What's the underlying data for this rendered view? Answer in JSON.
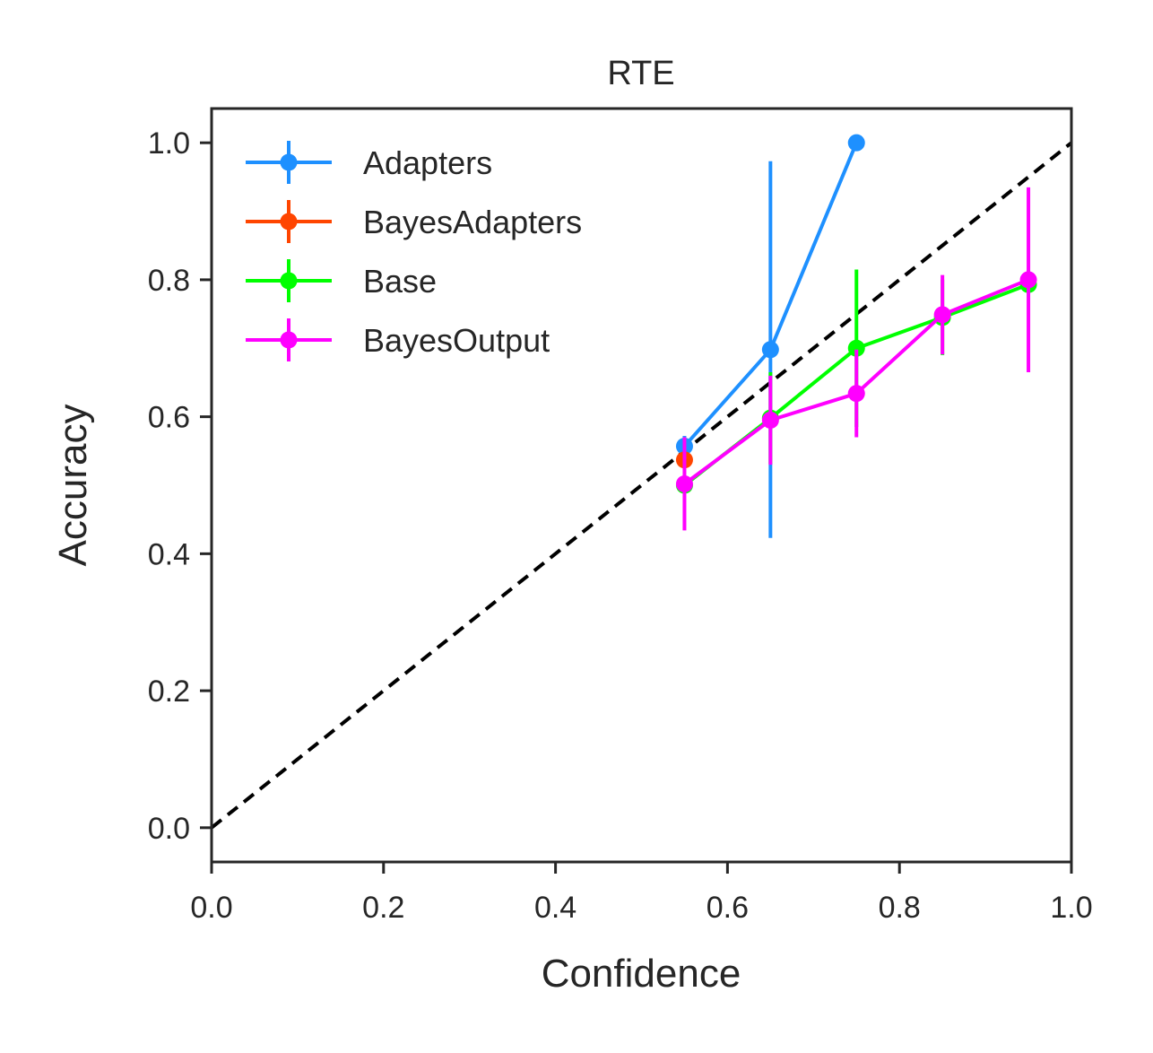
{
  "chart_data": {
    "type": "line",
    "title": "RTE",
    "xlabel": "Confidence",
    "ylabel": "Accuracy",
    "xlim": [
      0.0,
      1.0
    ],
    "ylim": [
      -0.05,
      1.05
    ],
    "xticks": [
      "0.0",
      "0.2",
      "0.4",
      "0.6",
      "0.8",
      "1.0"
    ],
    "yticks": [
      "0.0",
      "0.2",
      "0.4",
      "0.6",
      "0.8",
      "1.0"
    ],
    "grid": false,
    "legend_position": "top-left",
    "reference_line": {
      "style": "dashed",
      "color": "#000000",
      "from": [
        0,
        0
      ],
      "to": [
        1,
        1
      ]
    },
    "series": [
      {
        "name": "Adapters",
        "color": "#1e90ff",
        "x": [
          0.55,
          0.65,
          0.75
        ],
        "y": [
          0.557,
          0.698,
          1.0
        ],
        "err": [
          0.015,
          0.275,
          0.0
        ]
      },
      {
        "name": "BayesAdapters",
        "color": "#ff4500",
        "x": [
          0.55
        ],
        "y": [
          0.537
        ],
        "err": [
          0.0
        ]
      },
      {
        "name": "Base",
        "color": "#00ff00",
        "x": [
          0.55,
          0.65,
          0.75,
          0.85,
          0.95
        ],
        "y": [
          0.5,
          0.598,
          0.7,
          0.745,
          0.793
        ],
        "err": [
          0.0,
          0.067,
          0.115,
          0.055,
          0.0
        ]
      },
      {
        "name": "BayesOutput",
        "color": "#ff00ff",
        "x": [
          0.55,
          0.65,
          0.75,
          0.85,
          0.95
        ],
        "y": [
          0.502,
          0.595,
          0.634,
          0.749,
          0.8
        ],
        "err": [
          0.068,
          0.065,
          0.064,
          0.058,
          0.135
        ]
      }
    ]
  }
}
